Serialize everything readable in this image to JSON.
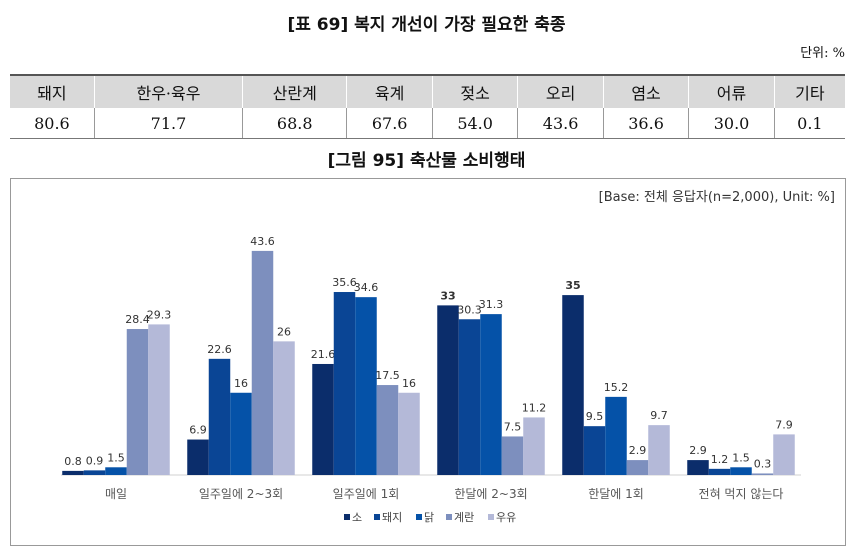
{
  "table": {
    "title": "[표 69] 복지 개선이 가장 필요한 축종",
    "unit": "단위: %",
    "headers": [
      "돼지",
      "한우·육우",
      "산란계",
      "육계",
      "젖소",
      "오리",
      "염소",
      "어류",
      "기타"
    ],
    "values": [
      "80.6",
      "71.7",
      "68.8",
      "67.6",
      "54.0",
      "43.6",
      "36.6",
      "30.0",
      "0.1"
    ]
  },
  "chart_data": {
    "type": "bar",
    "title": "[그림 95] 축산물 소비행태",
    "annotation": "[Base: 전체 응답자(n=2,000), Unit: %]",
    "categories": [
      "매일",
      "일주일에 2~3회",
      "일주일에 1회",
      "한달에 2~3회",
      "한달에 1회",
      "전혀 먹지 않는다"
    ],
    "series": [
      {
        "name": "소",
        "color": "#0b2d6b",
        "values": [
          0.8,
          6.9,
          21.6,
          33,
          35,
          2.9
        ]
      },
      {
        "name": "돼지",
        "color": "#0a4595",
        "values": [
          0.9,
          22.6,
          35.6,
          30.3,
          9.5,
          1.2
        ]
      },
      {
        "name": "닭",
        "color": "#0552a8",
        "values": [
          1.5,
          16,
          34.6,
          31.3,
          15.2,
          1.5
        ]
      },
      {
        "name": "계란",
        "color": "#7d8fbe",
        "values": [
          28.4,
          43.6,
          17.5,
          7.5,
          2.9,
          0.3
        ]
      },
      {
        "name": "우유",
        "color": "#b4b9d8",
        "values": [
          29.3,
          26,
          16,
          11.2,
          9.7,
          7.9
        ]
      }
    ],
    "legend_position": "bottom",
    "grid": false,
    "ylim": [
      0,
      45
    ]
  }
}
